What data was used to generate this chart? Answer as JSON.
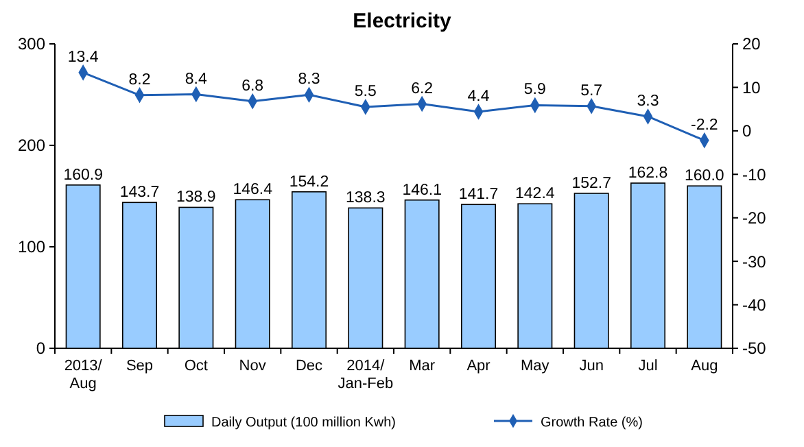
{
  "chart_data": {
    "type": "bar",
    "title": "Electricity",
    "categories": [
      "2013/Aug",
      "Sep",
      "Oct",
      "Nov",
      "Dec",
      "2014/Jan-Feb",
      "Mar",
      "Apr",
      "May",
      "Jun",
      "Jul",
      "Aug"
    ],
    "series": [
      {
        "name": "Daily Output (100 million Kwh)",
        "color": "#99ccff",
        "values": [
          160.9,
          143.7,
          138.9,
          146.4,
          154.2,
          138.3,
          146.1,
          141.7,
          142.4,
          152.7,
          162.8,
          160.0
        ],
        "value_labels": [
          "160.9",
          "143.7",
          "138.9",
          "146.4",
          "154.2",
          "138.3",
          "146.1",
          "141.7",
          "142.4",
          "152.7",
          "162.8",
          "160.0"
        ]
      },
      {
        "name": "Growth Rate (%)",
        "type": "line",
        "axis": "y2",
        "color": "#1f5fb4",
        "marker": "diamond",
        "values": [
          13.4,
          8.2,
          8.4,
          6.8,
          8.3,
          5.5,
          6.2,
          4.4,
          5.9,
          5.7,
          3.3,
          -2.2
        ],
        "value_labels": [
          "13.4",
          "8.2",
          "8.4",
          "6.8",
          "8.3",
          "5.5",
          "6.2",
          "4.4",
          "5.9",
          "5.7",
          "3.3",
          "-2.2"
        ]
      }
    ],
    "ylim": [
      0,
      300
    ],
    "yticks": [
      0,
      100,
      200,
      300
    ],
    "y2lim": [
      -50,
      20
    ],
    "y2ticks": [
      -50,
      -40,
      -30,
      -20,
      -10,
      0,
      10,
      20
    ],
    "legend": "bottom",
    "grid": false
  }
}
